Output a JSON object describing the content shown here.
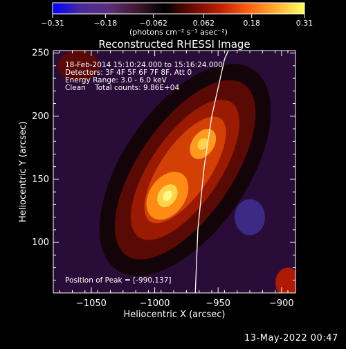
{
  "chart_data": {
    "type": "heatmap",
    "title": "Reconstructed RHESSI Image",
    "xlabel": "Heliocentric X (arcsec)",
    "ylabel": "Heliocentric Y (arcsec)",
    "xlim": [
      -1080,
      -889
    ],
    "ylim": [
      60,
      252
    ],
    "x_ticks": [
      -1050,
      -1000,
      -950,
      -900
    ],
    "x_tick_labels": [
      "−1050",
      "−1000",
      "−950",
      "−900"
    ],
    "y_ticks": [
      100,
      150,
      200,
      250
    ],
    "y_tick_labels": [
      "100",
      "150",
      "200",
      "250"
    ],
    "colorbar": {
      "range": [
        -0.31,
        0.31
      ],
      "ticks": [
        -0.31,
        -0.18,
        -0.062,
        0.062,
        0.18,
        0.31
      ],
      "tick_labels": [
        "−0.31",
        "−0.18",
        "−0.062",
        "0.062",
        "0.18",
        "0.31"
      ],
      "unit_label": "(photons cm⁻² s⁻¹ asec⁻²)"
    },
    "info_lines": [
      "18-Feb-2014 15:10:24.000 to 15:16:24.000",
      "Detectors: 3F 4F 5F 6F 7F 8F, Att 0",
      "Energy Range: 3.0 - 6.0 keV",
      "Clean    Total counts: 9.86E+04"
    ],
    "peak_label": "Position of Peak = [-990,137]",
    "peak_position": [
      -990,
      137
    ],
    "secondary_peak": [
      -962,
      178
    ],
    "limb_curve": [
      [
        -968,
        60
      ],
      [
        -966,
        110
      ],
      [
        -961,
        160
      ],
      [
        -955,
        200
      ],
      [
        -945,
        245
      ],
      [
        -942,
        252
      ]
    ],
    "colors": {
      "background": "#000000",
      "limb": "#ffffff",
      "colormap": [
        "#0000ff",
        "#4a2a9a",
        "#5a2f7a",
        "#401830",
        "#000000",
        "#6a0a00",
        "#c02000",
        "#ff6010",
        "#ffb030",
        "#ffff60"
      ]
    }
  },
  "timestamp": "13-May-2022 00:47"
}
